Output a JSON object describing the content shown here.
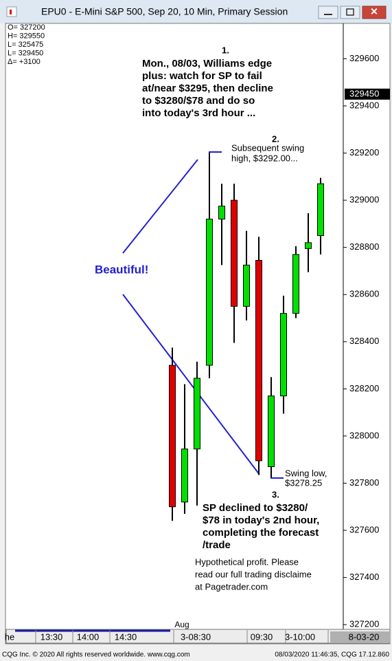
{
  "window": {
    "title": "EPU0 - E-Mini S&P 500, Sep 20, 10 Min, Primary Session",
    "footer_left": "CQG Inc. © 2020 All rights reserved worldwide. www.cqg.com",
    "footer_right": "08/03/2020 11:46:35, CQG 17.12.860"
  },
  "chart_data": {
    "type": "candlestick",
    "info": [
      "O= 327200",
      "H= 329550",
      "L= 325475",
      "L= 329450",
      "Δ=    +3100"
    ],
    "open": [
      328300,
      327720,
      327945,
      328300,
      328920,
      329000,
      328550,
      328745,
      327870,
      328170,
      328520,
      328795,
      328850
    ],
    "high": [
      328375,
      328220,
      328315,
      329200,
      329070,
      329070,
      328870,
      328845,
      328250,
      328595,
      328805,
      328945,
      329095
    ],
    "low": [
      327640,
      327670,
      327705,
      328245,
      328725,
      328395,
      328490,
      327835,
      327825,
      328095,
      328500,
      328695,
      328770
    ],
    "close": [
      327700,
      327945,
      328245,
      328920,
      328975,
      328550,
      328725,
      327895,
      328170,
      328520,
      328770,
      328820,
      329070
    ],
    "up_color": "#00e000",
    "down_color": "#e00000",
    "ylim": [
      327180,
      329750
    ],
    "yticks": [
      327200,
      327400,
      327600,
      327800,
      328000,
      328200,
      328400,
      328600,
      328800,
      329000,
      329200,
      329400,
      329600
    ],
    "last_price": 329450,
    "x_labels": [
      "he",
      "13:30",
      "14:00",
      "14:30",
      "3-08:30",
      "09:30",
      "3-10:00",
      "8-03-20"
    ],
    "month_label": "Aug",
    "annotations": {
      "a1": {
        "number": "1.",
        "lines": [
          "Mon., 08/03, Williams edge",
          "plus: watch for SP to fail",
          "at/near $3295, then decline",
          "to $3280/$78 and do so",
          "into today's 3rd hour ..."
        ]
      },
      "a2": {
        "number": "2.",
        "lines": [
          "Subsequent swing",
          "high, $3292.00..."
        ]
      },
      "beautiful": "Beautiful!",
      "swing_low": [
        "Swing low,",
        "$3278.25"
      ],
      "a3": {
        "number": "3.",
        "lines": [
          "SP declined to $3280/",
          "$78 in today's 2nd hour,",
          "completing the forecast",
          "/trade"
        ]
      },
      "disclaimer": [
        "Hypothetical profit.  Please",
        "read our full trading disclaime",
        "at Pagetrader.com"
      ]
    }
  }
}
